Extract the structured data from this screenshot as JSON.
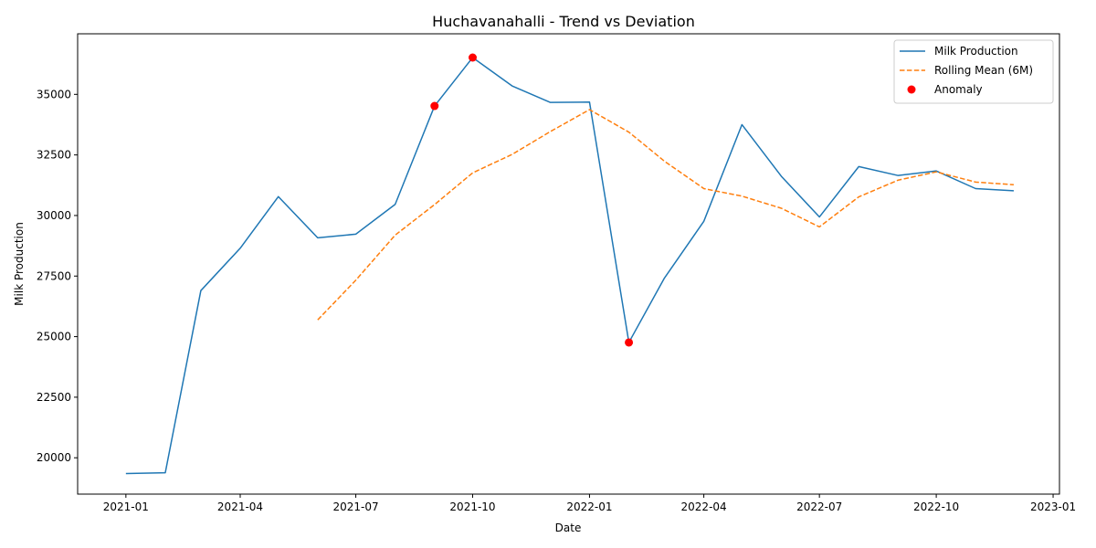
{
  "chart_data": {
    "type": "line",
    "title": "Huchavanahalli - Trend vs Deviation",
    "xlabel": "Date",
    "ylabel": "Milk Production",
    "x": [
      "2021-01",
      "2021-02",
      "2021-03",
      "2021-04",
      "2021-05",
      "2021-06",
      "2021-07",
      "2021-08",
      "2021-09",
      "2021-10",
      "2021-11",
      "2021-12",
      "2022-01",
      "2022-02",
      "2022-03",
      "2022-04",
      "2022-05",
      "2022-06",
      "2022-07",
      "2022-08",
      "2022-09",
      "2022-10",
      "2022-11",
      "2022-12"
    ],
    "x_ticks": [
      "2021-01",
      "2021-04",
      "2021-07",
      "2021-10",
      "2022-01",
      "2022-04",
      "2022-07",
      "2022-10",
      "2023-01"
    ],
    "xlim": [
      "2020-11-24",
      "2023-01-06"
    ],
    "y_ticks": [
      20000,
      22500,
      25000,
      27500,
      30000,
      32500,
      35000
    ],
    "ylim": [
      18500,
      37500
    ],
    "grid": false,
    "legend_position": "top-right",
    "series": [
      {
        "name": "Milk Production",
        "style": "solid",
        "color": "#1f77b4",
        "values": [
          19350,
          19380,
          26900,
          28650,
          30780,
          29080,
          29230,
          30460,
          34520,
          36520,
          35350,
          34670,
          34680,
          24760,
          27420,
          29760,
          33750,
          31620,
          29940,
          32020,
          31650,
          31840,
          31110,
          31020
        ]
      },
      {
        "name": "Rolling Mean (6M)",
        "style": "dashed",
        "color": "#ff7f0e",
        "values": [
          null,
          null,
          null,
          null,
          null,
          25690,
          27330,
          29190,
          30450,
          31760,
          32520,
          33460,
          34370,
          33440,
          32240,
          31110,
          30800,
          30300,
          29530,
          30770,
          31460,
          31800,
          31380,
          31270
        ]
      },
      {
        "name": "Anomaly",
        "type": "scatter",
        "color": "#ff0000",
        "points": [
          {
            "x": "2021-09",
            "y": 34520
          },
          {
            "x": "2021-10",
            "y": 36520
          },
          {
            "x": "2022-02",
            "y": 24760
          }
        ]
      }
    ]
  }
}
